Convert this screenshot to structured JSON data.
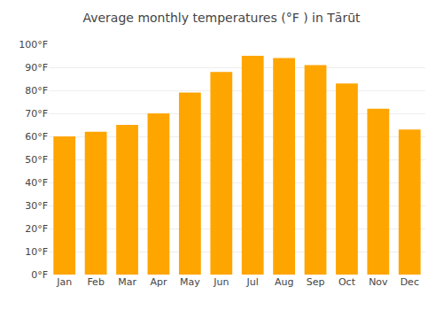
{
  "chart_data": {
    "type": "bar",
    "title": "Average monthly temperatures (°F ) in Tārūt",
    "categories": [
      "Jan",
      "Feb",
      "Mar",
      "Apr",
      "May",
      "Jun",
      "Jul",
      "Aug",
      "Sep",
      "Oct",
      "Nov",
      "Dec"
    ],
    "values": [
      60,
      62,
      65,
      70,
      79,
      88,
      95,
      94,
      91,
      83,
      72,
      63
    ],
    "color": "#FFA500",
    "ylim": [
      0,
      100
    ],
    "yticks": [
      {
        "value": 0,
        "label": "0°F"
      },
      {
        "value": 10,
        "label": "10°F"
      },
      {
        "value": 20,
        "label": "20°F"
      },
      {
        "value": 30,
        "label": "30°F"
      },
      {
        "value": 40,
        "label": "40°F"
      },
      {
        "value": 50,
        "label": "50°F"
      },
      {
        "value": 60,
        "label": "60°F"
      },
      {
        "value": 70,
        "label": "70°F"
      },
      {
        "value": 80,
        "label": "80°F"
      },
      {
        "value": 90,
        "label": "90°F"
      },
      {
        "value": 100,
        "label": "100°F"
      }
    ],
    "grid": true
  }
}
